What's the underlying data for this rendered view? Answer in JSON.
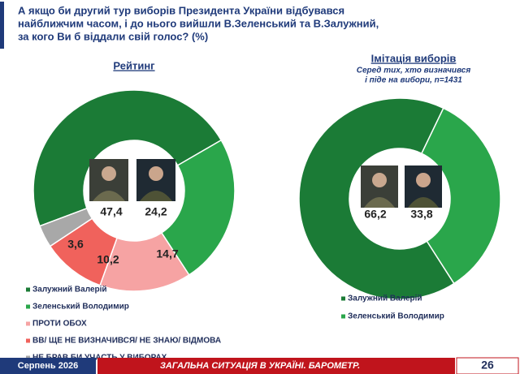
{
  "title": [
    "А якщо би другий тур виборів Президента України відбувався",
    "найближчим часом, і до нього вийшли В.Зеленський та В.Залужний,",
    "за кого Ви б віддали свій голос? (%)"
  ],
  "chart_data": [
    {
      "type": "pie",
      "title": "Рейтинг",
      "categories": [
        "Залужний Валерій",
        "Зеленський Володимир",
        "ПРОТИ ОБОХ",
        "ВВ/ ЩЕ НЕ ВИЗНАЧИВСЯ/ НЕ ЗНАЮ/ ВІДМОВА",
        "НЕ БРАВ БИ УЧАСТЬ У ВИБОРАХ"
      ],
      "values": [
        47.4,
        24.2,
        14.7,
        10.2,
        3.6
      ],
      "value_labels": [
        "47,4",
        "24,2",
        "14,7",
        "10,2",
        "3,6"
      ],
      "colors": [
        "#1b7b36",
        "#2aa64b",
        "#f6a3a3",
        "#f0625c",
        "#a8a8a8"
      ]
    },
    {
      "type": "pie",
      "title": "Імітація виборів",
      "subtitle": [
        "Серед тих, хто визначився",
        "і піде на вибори, n=1431"
      ],
      "categories": [
        "Залужний Валерій",
        "Зеленський Володимир"
      ],
      "values": [
        66.2,
        33.8
      ],
      "value_labels": [
        "66,2",
        "33,8"
      ],
      "colors": [
        "#1b7b36",
        "#2aa64b"
      ]
    }
  ],
  "footer": {
    "date": "Серпень 2026",
    "caption": "ЗАГАЛЬНА СИТУАЦІЯ В УКРАЇНІ. БАРОМЕТР.",
    "page": "26"
  }
}
